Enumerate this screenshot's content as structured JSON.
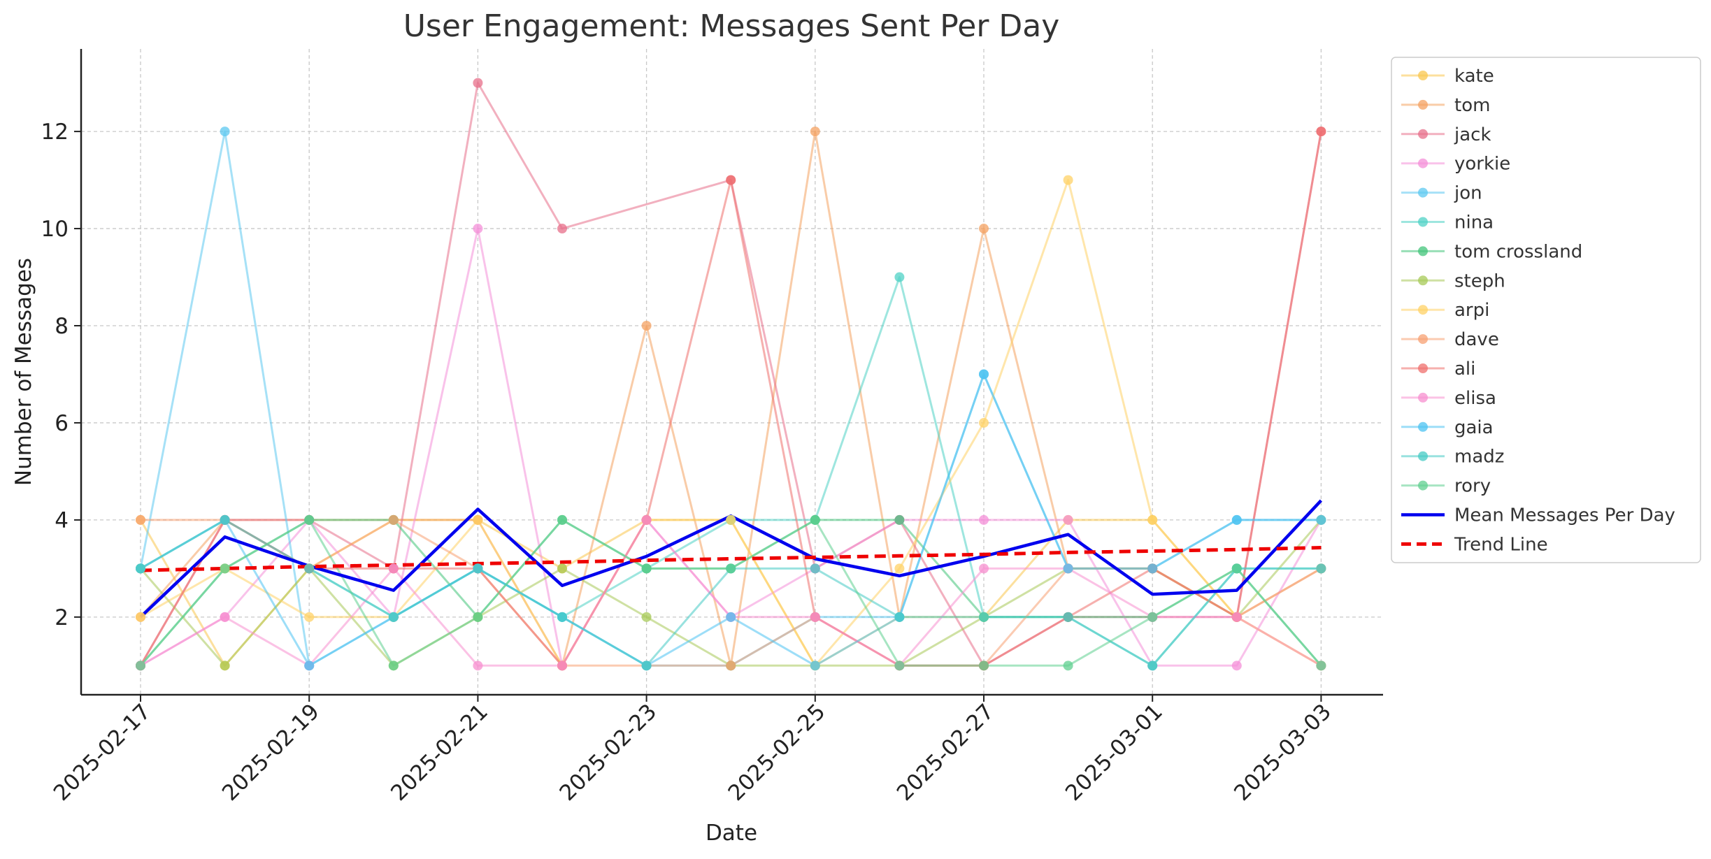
{
  "chart_data": {
    "type": "line",
    "title": "User Engagement: Messages Sent Per Day",
    "xlabel": "Date",
    "ylabel": "Number of Messages",
    "x": [
      "2025-02-17",
      "2025-02-18",
      "2025-02-19",
      "2025-02-20",
      "2025-02-21",
      "2025-02-22",
      "2025-02-23",
      "2025-02-24",
      "2025-02-25",
      "2025-02-26",
      "2025-02-27",
      "2025-02-28",
      "2025-03-01",
      "2025-03-02",
      "2025-03-03"
    ],
    "x_tick_labels": [
      "2025-02-17",
      "2025-02-19",
      "2025-02-21",
      "2025-02-23",
      "2025-02-25",
      "2025-02-27",
      "2025-03-01",
      "2025-03-03"
    ],
    "y_ticks": [
      2,
      4,
      6,
      8,
      10,
      12
    ],
    "ylim": [
      0.4,
      13.7
    ],
    "grid": true,
    "legend_position": "outside right",
    "series": [
      {
        "name": "kate",
        "color": "#f9c74f",
        "values": [
          4,
          1,
          3,
          4,
          4,
          3,
          4,
          4,
          1,
          2,
          2,
          4,
          4,
          2,
          1
        ]
      },
      {
        "name": "tom",
        "color": "#f4a261",
        "values": [
          2,
          4,
          4,
          4,
          4,
          1,
          8,
          1,
          12,
          2,
          10,
          3,
          3,
          2,
          3
        ]
      },
      {
        "name": "jack",
        "color": "#e76f8a",
        "values": [
          1,
          4,
          4,
          3,
          13,
          10,
          null,
          11,
          3,
          4,
          1,
          2,
          2,
          2,
          12
        ]
      },
      {
        "name": "yorkie",
        "color": "#f48fd8",
        "values": [
          1,
          2,
          4,
          2,
          10,
          1,
          4,
          2,
          3,
          4,
          4,
          4,
          1,
          1,
          4
        ]
      },
      {
        "name": "jon",
        "color": "#5cc8f0",
        "values": [
          3,
          12,
          1,
          2,
          3,
          2,
          1,
          1,
          2,
          2,
          7,
          3,
          3,
          4,
          4
        ]
      },
      {
        "name": "nina",
        "color": "#4fd1c5",
        "values": [
          3,
          4,
          3,
          2,
          3,
          2,
          3,
          4,
          4,
          9,
          2,
          2,
          1,
          3,
          3
        ]
      },
      {
        "name": "tom crossland",
        "color": "#43c47a",
        "values": [
          1,
          3,
          4,
          4,
          2,
          4,
          3,
          3,
          4,
          4,
          2,
          2,
          2,
          3,
          1
        ]
      },
      {
        "name": "steph",
        "color": "#a7c957",
        "values": [
          3,
          1,
          3,
          1,
          2,
          3,
          2,
          1,
          1,
          1,
          2,
          3,
          3,
          2,
          4
        ]
      },
      {
        "name": "arpi",
        "color": "#ffd166",
        "values": [
          2,
          3,
          2,
          2,
          4,
          1,
          4,
          4,
          1,
          3,
          6,
          11,
          4,
          2,
          1
        ]
      },
      {
        "name": "dave",
        "color": "#f7a072",
        "values": [
          4,
          4,
          3,
          4,
          3,
          1,
          1,
          1,
          2,
          1,
          1,
          3,
          3,
          2,
          3
        ]
      },
      {
        "name": "ali",
        "color": "#ef6f6c",
        "values": [
          1,
          4,
          3,
          3,
          3,
          1,
          4,
          11,
          2,
          1,
          1,
          2,
          3,
          2,
          12
        ]
      },
      {
        "name": "elisa",
        "color": "#f78fcf",
        "values": [
          1,
          2,
          1,
          3,
          1,
          1,
          4,
          2,
          2,
          1,
          3,
          3,
          2,
          2,
          1
        ]
      },
      {
        "name": "gaia",
        "color": "#4cc3f2",
        "values": [
          3,
          4,
          1,
          2,
          3,
          2,
          1,
          2,
          1,
          2,
          7,
          3,
          3,
          4,
          4
        ]
      },
      {
        "name": "madz",
        "color": "#45cbc4",
        "values": [
          3,
          4,
          3,
          2,
          3,
          2,
          1,
          3,
          3,
          2,
          2,
          2,
          1,
          3,
          3
        ]
      },
      {
        "name": "rory",
        "color": "#5fcf8f",
        "values": [
          1,
          3,
          4,
          1,
          2,
          4,
          3,
          3,
          4,
          1,
          1,
          1,
          2,
          3,
          1
        ]
      },
      {
        "name": "Mean Messages Per Day",
        "color": "#0000ee",
        "values": [
          2.0,
          3.65,
          3.05,
          2.55,
          4.22,
          2.65,
          3.25,
          4.08,
          3.2,
          2.85,
          3.25,
          3.7,
          2.47,
          2.55,
          4.4
        ]
      },
      {
        "name": "Trend Line",
        "color": "#ee0000",
        "values": [
          2.96,
          3.0,
          3.04,
          3.07,
          3.1,
          3.13,
          3.17,
          3.2,
          3.23,
          3.26,
          3.29,
          3.33,
          3.36,
          3.39,
          3.43
        ]
      }
    ]
  }
}
